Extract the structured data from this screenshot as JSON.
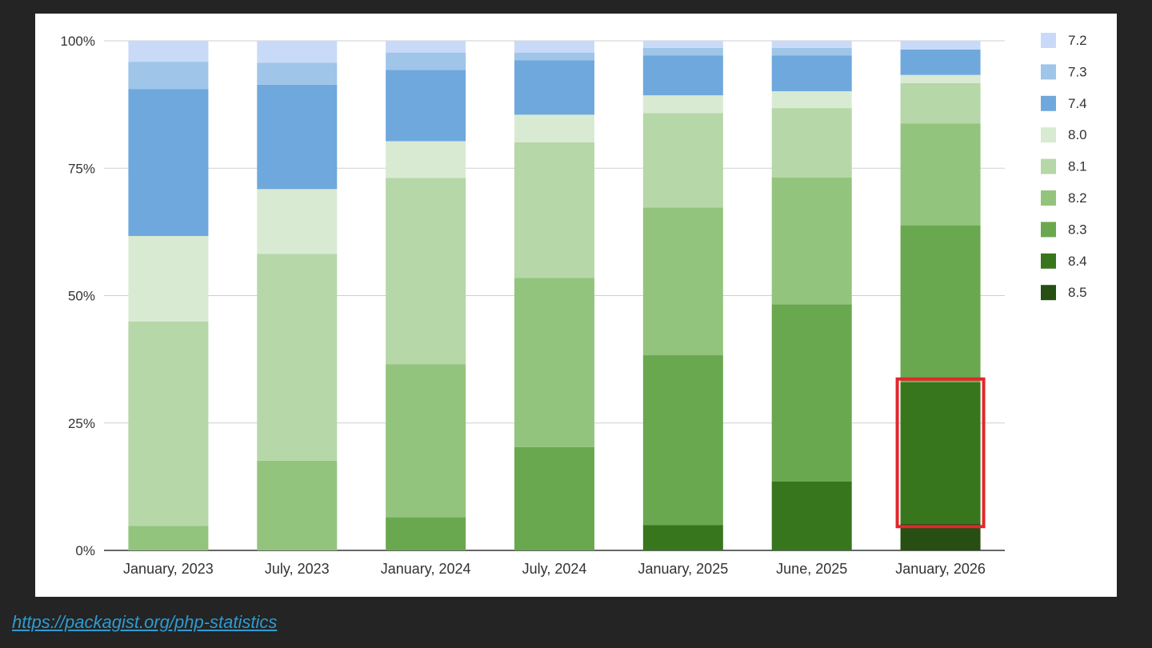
{
  "chart_data": {
    "type": "bar",
    "stacked": "percent",
    "categories": [
      "January, 2023",
      "July, 2023",
      "January, 2024",
      "July, 2024",
      "January, 2025",
      "June, 2025",
      "January, 2026"
    ],
    "ylim": [
      0,
      100
    ],
    "yticks": [
      "0%",
      "25%",
      "50%",
      "75%",
      "100%"
    ],
    "grid": true,
    "legend": "right",
    "xlabel": "",
    "ylabel": "",
    "title": "",
    "series": [
      {
        "name": "8.5",
        "color": "#274e13",
        "values": [
          0,
          0,
          0,
          0,
          0,
          0,
          5.3
        ]
      },
      {
        "name": "8.4",
        "color": "#38761d",
        "values": [
          0,
          0,
          0,
          0,
          5.0,
          13.5,
          27.7
        ]
      },
      {
        "name": "8.3",
        "color": "#6aa84f",
        "values": [
          0,
          0,
          6.5,
          20.3,
          33.3,
          34.8,
          30.8
        ]
      },
      {
        "name": "8.2",
        "color": "#93c47d",
        "values": [
          4.8,
          17.6,
          30.0,
          33.2,
          29.0,
          24.9,
          20.0
        ]
      },
      {
        "name": "8.1",
        "color": "#b6d7a8",
        "values": [
          40.1,
          40.6,
          36.6,
          26.6,
          18.5,
          13.6,
          7.9
        ]
      },
      {
        "name": "8.0",
        "color": "#d9ead3",
        "values": [
          16.8,
          12.7,
          7.2,
          5.4,
          3.5,
          3.3,
          1.6
        ]
      },
      {
        "name": "7.4",
        "color": "#6fa8dc",
        "values": [
          28.8,
          20.5,
          14.0,
          10.7,
          7.8,
          7.0,
          5.0
        ]
      },
      {
        "name": "7.3",
        "color": "#9fc5e8",
        "values": [
          5.4,
          4.3,
          3.4,
          1.5,
          1.5,
          1.5,
          0
        ]
      },
      {
        "name": "7.2",
        "color": "#c9daf8",
        "values": [
          4.1,
          4.3,
          2.3,
          2.3,
          1.4,
          1.4,
          1.7
        ]
      }
    ],
    "highlight": {
      "category": "January, 2026",
      "series": "8.4",
      "color": "#e3262e"
    }
  },
  "source": {
    "link_text": "https://packagist.org/php-statistics"
  }
}
